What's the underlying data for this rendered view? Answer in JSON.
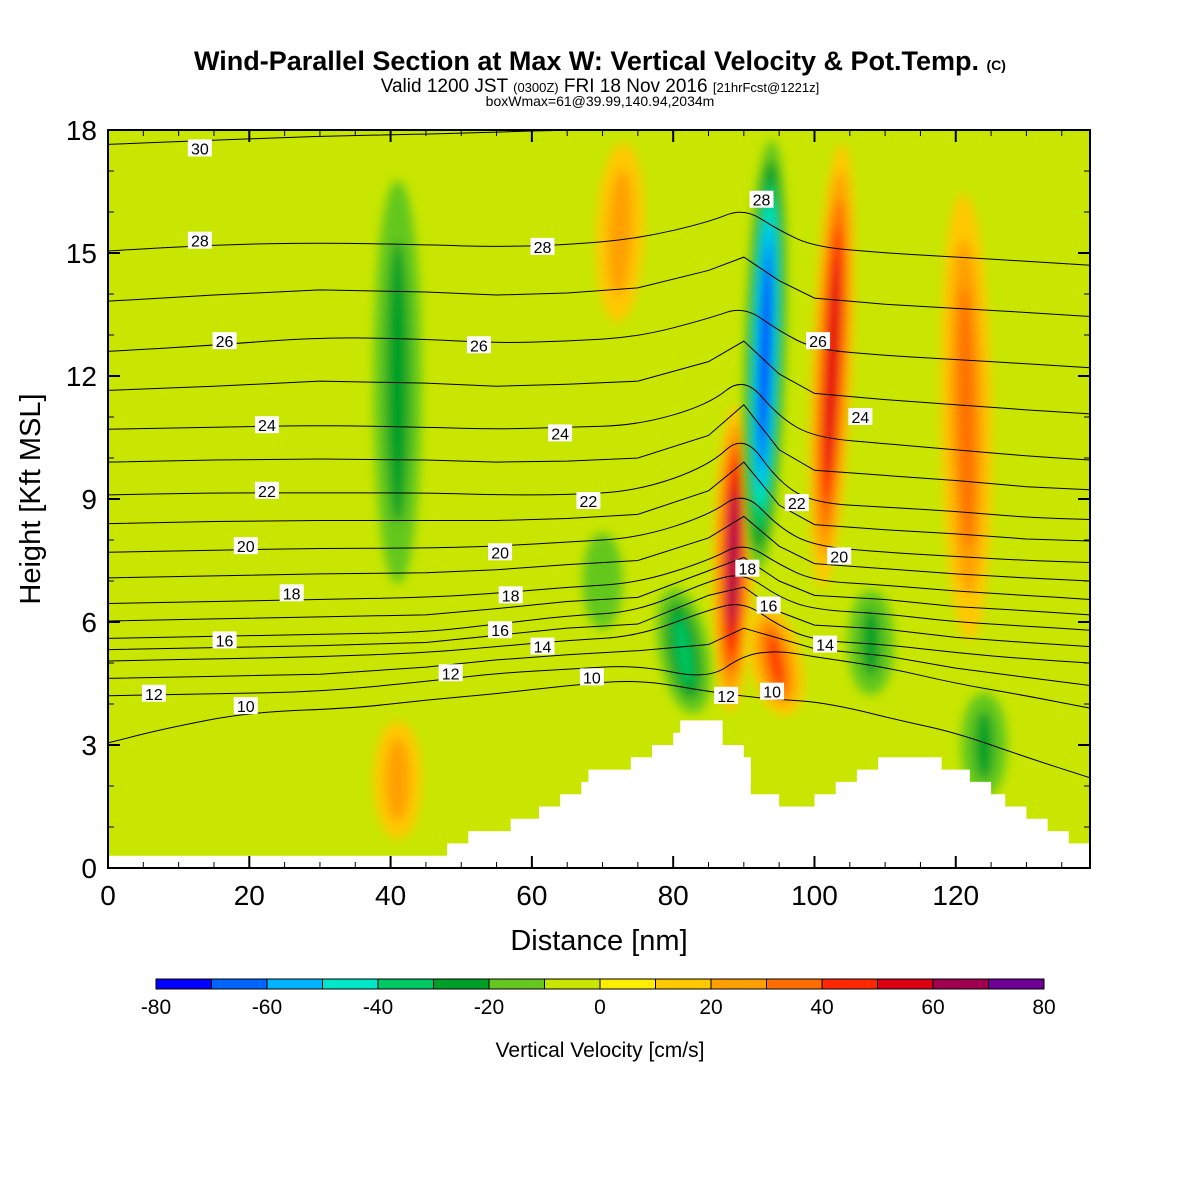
{
  "title": {
    "main": "Wind-Parallel Section at Max W: Vertical Velocity & Pot.Temp.",
    "copyright": "(C)",
    "valid_prefix": "Valid 1200 JST",
    "utc": "(0300Z)",
    "valid_date": "FRI 18 Nov 2016",
    "forecast": "[21hrFcst@1221z]",
    "box_info": "boxWmax=61@39.99,140.94,2034m"
  },
  "chart_data": {
    "type": "heatmap",
    "xlabel": "Distance [nm]",
    "ylabel": "Height [Kft MSL]",
    "xlim": [
      0,
      139
    ],
    "ylim": [
      0,
      18
    ],
    "xticks": [
      0,
      20,
      40,
      60,
      80,
      100,
      120
    ],
    "yticks": [
      0,
      3,
      6,
      9,
      12,
      15,
      18
    ],
    "grid": false,
    "colorbar": {
      "label": "Vertical Velocity [cm/s]",
      "range": [
        -80,
        80
      ],
      "tick_labels": [
        -80,
        -60,
        -40,
        -20,
        0,
        20,
        40,
        60,
        80
      ],
      "bins": [
        {
          "from": -80,
          "to": -70,
          "color": "#0000ff"
        },
        {
          "from": -70,
          "to": -60,
          "color": "#0064ff"
        },
        {
          "from": -60,
          "to": -50,
          "color": "#00b4ff"
        },
        {
          "from": -50,
          "to": -40,
          "color": "#00e6c8"
        },
        {
          "from": -40,
          "to": -30,
          "color": "#00c864"
        },
        {
          "from": -30,
          "to": -20,
          "color": "#00a028"
        },
        {
          "from": -20,
          "to": -10,
          "color": "#64c81e"
        },
        {
          "from": -10,
          "to": 0,
          "color": "#c8e600"
        },
        {
          "from": 0,
          "to": 10,
          "color": "#ffee00"
        },
        {
          "from": 10,
          "to": 20,
          "color": "#ffc800"
        },
        {
          "from": 20,
          "to": 30,
          "color": "#ffa000"
        },
        {
          "from": 30,
          "to": 40,
          "color": "#ff6e00"
        },
        {
          "from": 40,
          "to": 50,
          "color": "#ff2800"
        },
        {
          "from": 50,
          "to": 60,
          "color": "#dc0014"
        },
        {
          "from": 60,
          "to": 70,
          "color": "#a00050"
        },
        {
          "from": 70,
          "to": 80,
          "color": "#6e0096"
        }
      ]
    },
    "wvv_features": [
      {
        "kind": "updraft",
        "x_center": 88,
        "x_top": 89,
        "z_bottom": 3.6,
        "z_top": 11.5,
        "w_peak": 61
      },
      {
        "kind": "updraft",
        "x_center": 101,
        "x_top": 104,
        "z_bottom": 6.5,
        "z_top": 18,
        "w_peak": 55
      },
      {
        "kind": "updraft",
        "x_center": 96,
        "x_top": 93,
        "z_bottom": 3.6,
        "z_top": 6.5,
        "w_peak": 40
      },
      {
        "kind": "updraft",
        "x_center": 122,
        "x_top": 121,
        "z_bottom": 5,
        "z_top": 17,
        "w_peak": 35
      },
      {
        "kind": "updraft",
        "x_center": 72,
        "x_top": 73,
        "z_bottom": 13,
        "z_top": 18,
        "w_peak": 25
      },
      {
        "kind": "updraft",
        "x_center": 41,
        "x_top": 41,
        "z_bottom": 0.5,
        "z_top": 3.8,
        "w_peak": 25
      },
      {
        "kind": "downdraft",
        "x_center": 92,
        "x_top": 94,
        "z_bottom": 7,
        "z_top": 18,
        "w_peak": -72
      },
      {
        "kind": "downdraft",
        "x_center": 83,
        "x_top": 80,
        "z_bottom": 3.6,
        "z_top": 7,
        "w_peak": -32
      },
      {
        "kind": "downdraft",
        "x_center": 41,
        "x_top": 41,
        "z_bottom": 6.2,
        "z_top": 17.5,
        "w_peak": -25
      },
      {
        "kind": "downdraft",
        "x_center": 108,
        "x_top": 108,
        "z_bottom": 4,
        "z_top": 7,
        "w_peak": -22
      },
      {
        "kind": "downdraft",
        "x_center": 124,
        "x_top": 124,
        "z_bottom": 1.5,
        "z_top": 4.5,
        "w_peak": -22
      },
      {
        "kind": "downdraft",
        "x_center": 70,
        "x_top": 70,
        "z_bottom": 5.5,
        "z_top": 8.5,
        "w_peak": -15
      }
    ],
    "theta_contours": [
      {
        "level": "10",
        "points": [
          [
            0,
            3.05
          ],
          [
            8,
            3.4
          ],
          [
            20,
            3.8
          ],
          [
            35,
            3.9
          ],
          [
            45,
            4.1
          ],
          [
            55,
            4.25
          ],
          [
            65,
            4.45
          ],
          [
            75,
            4.6
          ],
          [
            85,
            4.3
          ],
          [
            92,
            4.15
          ],
          [
            96,
            4.1
          ],
          [
            100,
            4.05
          ],
          [
            105,
            3.9
          ],
          [
            112,
            3.6
          ],
          [
            120,
            3.3
          ],
          [
            130,
            2.7
          ],
          [
            139,
            2.2
          ]
        ]
      },
      {
        "level": "12",
        "points": [
          [
            0,
            4.2
          ],
          [
            15,
            4.25
          ],
          [
            30,
            4.3
          ],
          [
            45,
            4.55
          ],
          [
            55,
            4.75
          ],
          [
            65,
            4.85
          ],
          [
            75,
            4.95
          ],
          [
            85,
            4.6
          ],
          [
            90,
            5.2
          ],
          [
            95,
            5.3
          ],
          [
            100,
            5.15
          ],
          [
            110,
            4.9
          ],
          [
            120,
            4.5
          ],
          [
            130,
            4.2
          ],
          [
            139,
            3.9
          ]
        ]
      },
      {
        "level": "14",
        "points": [
          [
            0,
            5.05
          ],
          [
            15,
            5.1
          ],
          [
            30,
            5.15
          ],
          [
            45,
            5.25
          ],
          [
            55,
            5.4
          ],
          [
            65,
            5.55
          ],
          [
            75,
            5.65
          ],
          [
            85,
            6.3
          ],
          [
            90,
            6.5
          ],
          [
            95,
            5.9
          ],
          [
            100,
            5.55
          ],
          [
            110,
            5.45
          ],
          [
            120,
            5.25
          ],
          [
            130,
            5.1
          ],
          [
            139,
            5
          ]
        ]
      },
      {
        "level": "16",
        "points": [
          [
            0,
            5.6
          ],
          [
            15,
            5.65
          ],
          [
            30,
            5.7
          ],
          [
            45,
            5.75
          ],
          [
            55,
            5.95
          ],
          [
            65,
            6.15
          ],
          [
            75,
            6.25
          ],
          [
            85,
            7.0
          ],
          [
            90,
            7.2
          ],
          [
            95,
            6.6
          ],
          [
            100,
            6.3
          ],
          [
            110,
            6.2
          ],
          [
            120,
            6.0
          ],
          [
            130,
            5.9
          ],
          [
            139,
            5.8
          ]
        ]
      },
      {
        "level": "18",
        "points": [
          [
            0,
            6.45
          ],
          [
            15,
            6.5
          ],
          [
            30,
            6.55
          ],
          [
            45,
            6.6
          ],
          [
            55,
            6.7
          ],
          [
            65,
            6.85
          ],
          [
            75,
            6.95
          ],
          [
            85,
            7.5
          ],
          [
            90,
            7.95
          ],
          [
            95,
            7.4
          ],
          [
            100,
            7.0
          ],
          [
            110,
            6.9
          ],
          [
            120,
            6.75
          ],
          [
            130,
            6.65
          ],
          [
            139,
            6.55
          ]
        ]
      },
      {
        "level": "20",
        "points": [
          [
            0,
            7.7
          ],
          [
            15,
            7.75
          ],
          [
            30,
            7.8
          ],
          [
            45,
            7.8
          ],
          [
            55,
            7.85
          ],
          [
            65,
            7.95
          ],
          [
            75,
            8.05
          ],
          [
            85,
            8.6
          ],
          [
            90,
            9.2
          ],
          [
            95,
            8.3
          ],
          [
            100,
            7.85
          ],
          [
            110,
            7.7
          ],
          [
            120,
            7.6
          ],
          [
            130,
            7.5
          ],
          [
            139,
            7.45
          ]
        ]
      },
      {
        "level": "22",
        "points": [
          [
            0,
            9.1
          ],
          [
            15,
            9.15
          ],
          [
            30,
            9.15
          ],
          [
            45,
            9.15
          ],
          [
            55,
            9.1
          ],
          [
            65,
            9.1
          ],
          [
            75,
            9.2
          ],
          [
            85,
            9.8
          ],
          [
            90,
            10.6
          ],
          [
            95,
            9.4
          ],
          [
            100,
            8.9
          ],
          [
            110,
            8.8
          ],
          [
            120,
            8.7
          ],
          [
            130,
            8.55
          ],
          [
            139,
            8.5
          ]
        ]
      },
      {
        "level": "24",
        "points": [
          [
            0,
            10.7
          ],
          [
            15,
            10.75
          ],
          [
            30,
            10.8
          ],
          [
            45,
            10.75
          ],
          [
            55,
            10.7
          ],
          [
            65,
            10.75
          ],
          [
            75,
            10.8
          ],
          [
            85,
            11.3
          ],
          [
            90,
            12.0
          ],
          [
            95,
            11.0
          ],
          [
            100,
            10.5
          ],
          [
            110,
            10.35
          ],
          [
            120,
            10.2
          ],
          [
            130,
            10.05
          ],
          [
            139,
            9.95
          ]
        ]
      },
      {
        "level": "26",
        "points": [
          [
            0,
            12.6
          ],
          [
            15,
            12.75
          ],
          [
            30,
            12.95
          ],
          [
            45,
            12.9
          ],
          [
            55,
            12.8
          ],
          [
            65,
            12.85
          ],
          [
            75,
            12.95
          ],
          [
            85,
            13.4
          ],
          [
            90,
            13.7
          ],
          [
            95,
            13.1
          ],
          [
            100,
            12.65
          ],
          [
            110,
            12.5
          ],
          [
            120,
            12.4
          ],
          [
            130,
            12.3
          ],
          [
            139,
            12.2
          ]
        ]
      },
      {
        "level": "28",
        "points": [
          [
            0,
            15.05
          ],
          [
            15,
            15.2
          ],
          [
            30,
            15.25
          ],
          [
            45,
            15.2
          ],
          [
            55,
            15.15
          ],
          [
            65,
            15.2
          ],
          [
            75,
            15.35
          ],
          [
            85,
            15.75
          ],
          [
            90,
            16.1
          ],
          [
            95,
            15.55
          ],
          [
            100,
            15.15
          ],
          [
            110,
            15.0
          ],
          [
            120,
            14.9
          ],
          [
            130,
            14.8
          ],
          [
            139,
            14.7
          ]
        ]
      },
      {
        "level": "30",
        "points": [
          [
            0,
            17.65
          ],
          [
            15,
            17.75
          ],
          [
            30,
            17.85
          ],
          [
            45,
            17.9
          ],
          [
            55,
            17.95
          ],
          [
            65,
            18.0
          ],
          [
            75,
            18.0
          ],
          [
            139,
            18.0
          ]
        ]
      }
    ],
    "contour_labels": [
      {
        "text": "30",
        "x": 13,
        "z": 17.55
      },
      {
        "text": "28",
        "x": 13,
        "z": 15.3
      },
      {
        "text": "28",
        "x": 61.5,
        "z": 15.15
      },
      {
        "text": "28",
        "x": 92.5,
        "z": 16.3
      },
      {
        "text": "26",
        "x": 16.5,
        "z": 12.85
      },
      {
        "text": "26",
        "x": 52.5,
        "z": 12.75
      },
      {
        "text": "26",
        "x": 100.5,
        "z": 12.85
      },
      {
        "text": "24",
        "x": 22.5,
        "z": 10.8
      },
      {
        "text": "24",
        "x": 64,
        "z": 10.6
      },
      {
        "text": "24",
        "x": 106.5,
        "z": 11.0
      },
      {
        "text": "22",
        "x": 22.5,
        "z": 9.2
      },
      {
        "text": "22",
        "x": 68,
        "z": 8.95
      },
      {
        "text": "22",
        "x": 97.5,
        "z": 8.9
      },
      {
        "text": "20",
        "x": 19.5,
        "z": 7.85
      },
      {
        "text": "20",
        "x": 55.5,
        "z": 7.7
      },
      {
        "text": "20",
        "x": 103.5,
        "z": 7.6
      },
      {
        "text": "18",
        "x": 26,
        "z": 6.7
      },
      {
        "text": "18",
        "x": 57,
        "z": 6.65
      },
      {
        "text": "18",
        "x": 90.5,
        "z": 7.3
      },
      {
        "text": "16",
        "x": 16.5,
        "z": 5.55
      },
      {
        "text": "16",
        "x": 55.5,
        "z": 5.8
      },
      {
        "text": "16",
        "x": 93.5,
        "z": 6.4
      },
      {
        "text": "14",
        "x": 61.5,
        "z": 5.4
      },
      {
        "text": "14",
        "x": 101.5,
        "z": 5.45
      },
      {
        "text": "12",
        "x": 6.5,
        "z": 4.25
      },
      {
        "text": "12",
        "x": 48.5,
        "z": 4.75
      },
      {
        "text": "12",
        "x": 87.5,
        "z": 4.2
      },
      {
        "text": "10",
        "x": 19.5,
        "z": 3.95
      },
      {
        "text": "10",
        "x": 68.5,
        "z": 4.65
      },
      {
        "text": "10",
        "x": 94,
        "z": 4.3
      }
    ],
    "terrain": [
      [
        0,
        0.3
      ],
      [
        48,
        0.3
      ],
      [
        48,
        0.6
      ],
      [
        51,
        0.6
      ],
      [
        51,
        0.9
      ],
      [
        57,
        0.9
      ],
      [
        57,
        1.2
      ],
      [
        61,
        1.2
      ],
      [
        61,
        1.5
      ],
      [
        64,
        1.5
      ],
      [
        64,
        1.8
      ],
      [
        67,
        1.8
      ],
      [
        67,
        2.1
      ],
      [
        68,
        2.1
      ],
      [
        68,
        2.4
      ],
      [
        74,
        2.4
      ],
      [
        74,
        2.7
      ],
      [
        77,
        2.7
      ],
      [
        77,
        3.0
      ],
      [
        80,
        3.0
      ],
      [
        80,
        3.3
      ],
      [
        81,
        3.3
      ],
      [
        81,
        3.6
      ],
      [
        87,
        3.6
      ],
      [
        87,
        3.0
      ],
      [
        90,
        3.0
      ],
      [
        90,
        2.7
      ],
      [
        91,
        2.7
      ],
      [
        91,
        1.8
      ],
      [
        95,
        1.8
      ],
      [
        95,
        1.5
      ],
      [
        100,
        1.5
      ],
      [
        100,
        1.8
      ],
      [
        103,
        1.8
      ],
      [
        103,
        2.1
      ],
      [
        106,
        2.1
      ],
      [
        106,
        2.4
      ],
      [
        109,
        2.4
      ],
      [
        109,
        2.7
      ],
      [
        118,
        2.7
      ],
      [
        118,
        2.4
      ],
      [
        122,
        2.4
      ],
      [
        122,
        2.1
      ],
      [
        125,
        2.1
      ],
      [
        125,
        1.8
      ],
      [
        127,
        1.8
      ],
      [
        127,
        1.5
      ],
      [
        130,
        1.5
      ],
      [
        130,
        1.2
      ],
      [
        133,
        1.2
      ],
      [
        133,
        0.9
      ],
      [
        136,
        0.9
      ],
      [
        136,
        0.6
      ],
      [
        139,
        0.6
      ],
      [
        139,
        0
      ]
    ]
  }
}
